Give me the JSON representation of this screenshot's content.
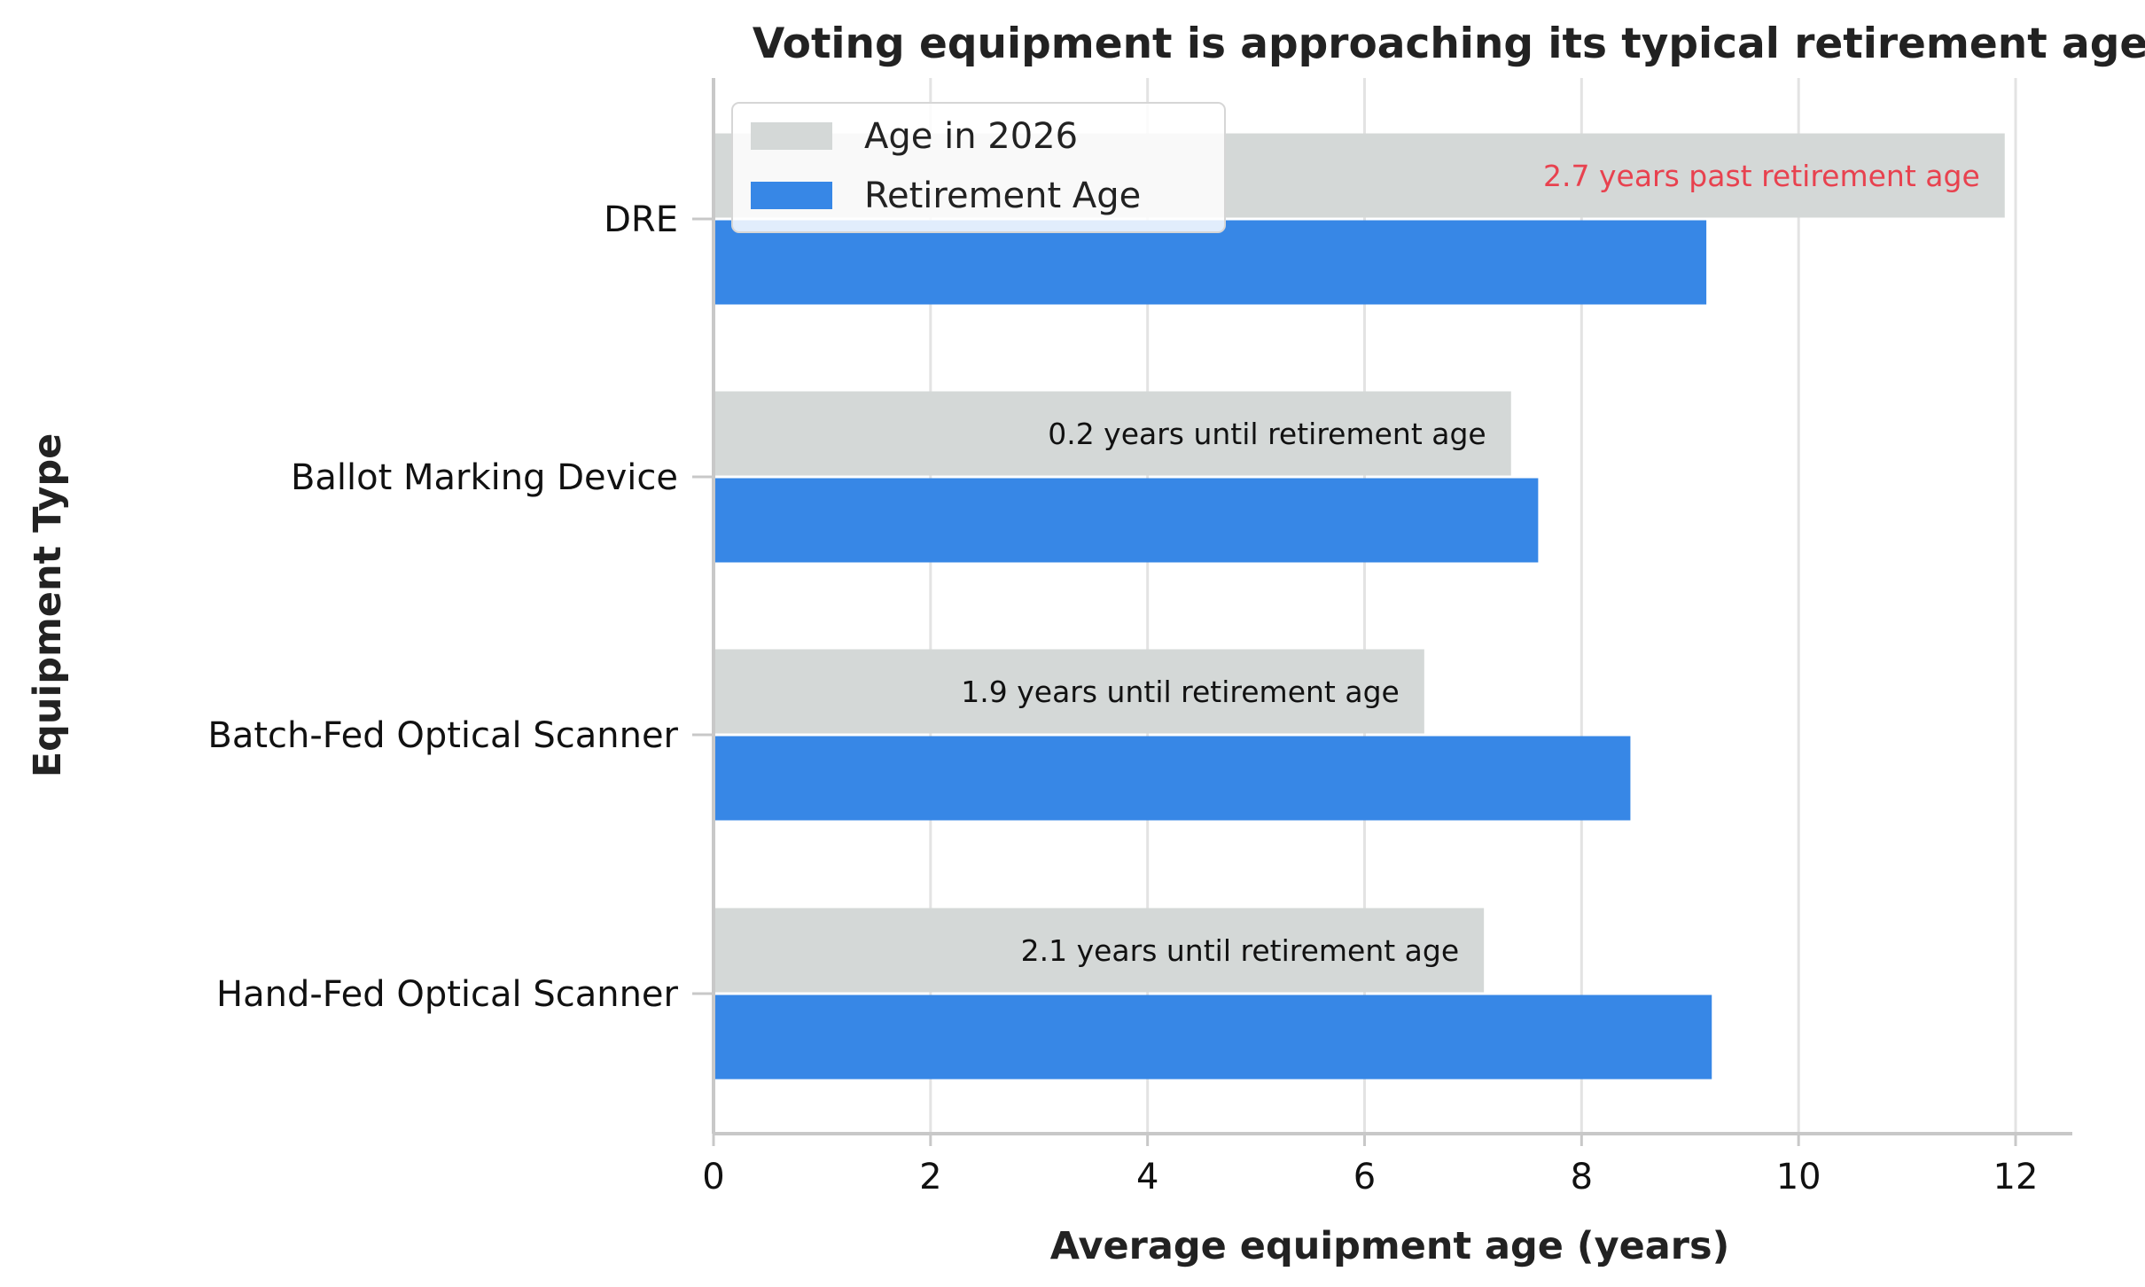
{
  "chart_data": {
    "type": "bar",
    "orientation": "horizontal",
    "title": "Voting equipment is approaching its typical retirement age.",
    "xlabel": "Average equipment age (years)",
    "ylabel": "Equipment Type",
    "xlim": [
      0,
      12.5
    ],
    "xticks": [
      0,
      2,
      4,
      6,
      8,
      10,
      12
    ],
    "grid": "vertical",
    "legend_placement": "upper-left",
    "categories": [
      "DRE",
      "Ballot Marking Device",
      "Batch-Fed Optical Scanner",
      "Hand-Fed Optical Scanner"
    ],
    "series": [
      {
        "name": "Age in 2026",
        "color": "#d4d8d7",
        "values": [
          11.9,
          7.35,
          6.55,
          7.1
        ]
      },
      {
        "name": "Retirement Age",
        "color": "#3787e6",
        "values": [
          9.15,
          7.6,
          8.45,
          9.2
        ]
      }
    ],
    "annotations": [
      {
        "category": "DRE",
        "text": "2.7 years past retirement age",
        "color": "#e8424f"
      },
      {
        "category": "Ballot Marking Device",
        "text": "0.2 years until retirement age",
        "color": "#111111"
      },
      {
        "category": "Batch-Fed Optical Scanner",
        "text": "1.9 years until retirement age",
        "color": "#111111"
      },
      {
        "category": "Hand-Fed Optical Scanner",
        "text": "2.1 years until retirement age",
        "color": "#111111"
      }
    ],
    "colors": {
      "grid": "#e3e3e3",
      "axis": "#c8c8c8"
    }
  }
}
